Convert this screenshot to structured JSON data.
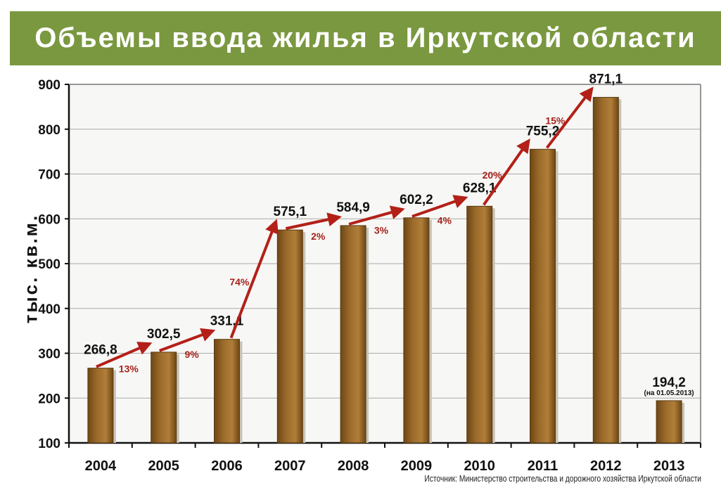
{
  "title": "Объемы ввода жилья в Иркутской области",
  "source": "Источник: Министерство строительства и дорожного хозяйства Иркутской области",
  "colors": {
    "banner": "#7a9840",
    "bar": "#9a6a2a",
    "arrow": "#b32018",
    "pct_text": "#a6231b"
  },
  "chart_data": {
    "type": "bar",
    "ylabel": "тыс. кв.м.",
    "ylim": [
      100,
      900
    ],
    "yticks": [
      100,
      200,
      300,
      400,
      500,
      600,
      700,
      800,
      900
    ],
    "grid": true,
    "categories": [
      "2004",
      "2005",
      "2006",
      "2007",
      "2008",
      "2009",
      "2010",
      "2011",
      "2012",
      "2013"
    ],
    "values": [
      266.8,
      302.5,
      331.1,
      575.1,
      584.9,
      602.2,
      628.1,
      755.2,
      871.1,
      194.2
    ],
    "value_labels": [
      "266,8",
      "302,5",
      "331,1",
      "575,1",
      "584,9",
      "602,2",
      "628,1",
      "755,2",
      "871,1",
      "194,2"
    ],
    "notes": [
      "",
      "",
      "",
      "",
      "",
      "",
      "",
      "",
      "",
      "(на 01.05.2013)"
    ],
    "growth": [
      {
        "from": "2004",
        "to": "2005",
        "label": "13%"
      },
      {
        "from": "2005",
        "to": "2006",
        "label": "9%"
      },
      {
        "from": "2006",
        "to": "2007",
        "label": "74%"
      },
      {
        "from": "2007",
        "to": "2008",
        "label": "2%"
      },
      {
        "from": "2008",
        "to": "2009",
        "label": "3%"
      },
      {
        "from": "2009",
        "to": "2010",
        "label": "4%"
      },
      {
        "from": "2010",
        "to": "2011",
        "label": "20%"
      },
      {
        "from": "2011",
        "to": "2012",
        "label": "15%"
      }
    ]
  }
}
